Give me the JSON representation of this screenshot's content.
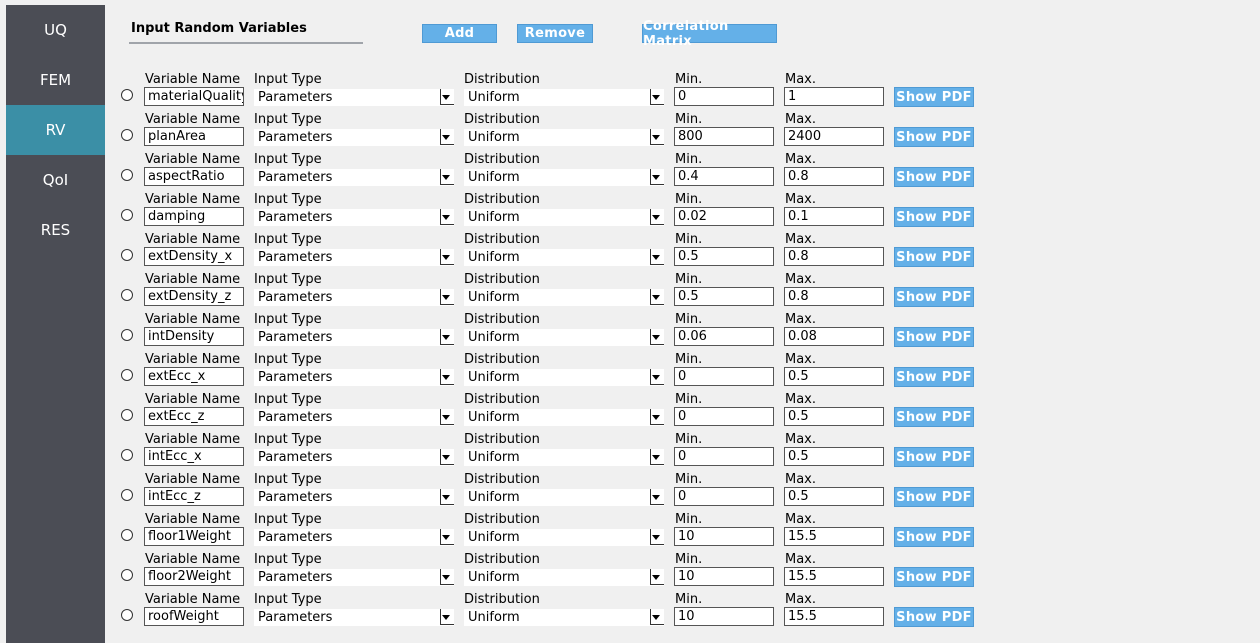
{
  "sidebar": {
    "items": [
      {
        "label": "UQ",
        "active": false
      },
      {
        "label": "FEM",
        "active": false
      },
      {
        "label": "RV",
        "active": true
      },
      {
        "label": "QoI",
        "active": false
      },
      {
        "label": "RES",
        "active": false
      }
    ]
  },
  "header": {
    "title": "Input Random Variables",
    "add_label": "Add",
    "remove_label": "Remove",
    "correlation_label": "Correlation Matrix"
  },
  "labels": {
    "variable_name": "Variable Name",
    "input_type": "Input Type",
    "distribution": "Distribution",
    "min": "Min.",
    "max": "Max.",
    "show_pdf": "Show PDF"
  },
  "colors": {
    "sidebar_bg": "#4b4d55",
    "sidebar_active": "#3b8fa6",
    "button_bg": "#64b0e8"
  },
  "variables": [
    {
      "name": "materialQuality",
      "input_type": "Parameters",
      "distribution": "Uniform",
      "min": "0",
      "max": "1"
    },
    {
      "name": "planArea",
      "input_type": "Parameters",
      "distribution": "Uniform",
      "min": "800",
      "max": "2400"
    },
    {
      "name": "aspectRatio",
      "input_type": "Parameters",
      "distribution": "Uniform",
      "min": "0.4",
      "max": "0.8"
    },
    {
      "name": "damping",
      "input_type": "Parameters",
      "distribution": "Uniform",
      "min": "0.02",
      "max": "0.1"
    },
    {
      "name": "extDensity_x",
      "input_type": "Parameters",
      "distribution": "Uniform",
      "min": "0.5",
      "max": "0.8"
    },
    {
      "name": "extDensity_z",
      "input_type": "Parameters",
      "distribution": "Uniform",
      "min": "0.5",
      "max": "0.8"
    },
    {
      "name": "intDensity",
      "input_type": "Parameters",
      "distribution": "Uniform",
      "min": "0.06",
      "max": "0.08"
    },
    {
      "name": "extEcc_x",
      "input_type": "Parameters",
      "distribution": "Uniform",
      "min": "0",
      "max": "0.5"
    },
    {
      "name": "extEcc_z",
      "input_type": "Parameters",
      "distribution": "Uniform",
      "min": "0",
      "max": "0.5"
    },
    {
      "name": "intEcc_x",
      "input_type": "Parameters",
      "distribution": "Uniform",
      "min": "0",
      "max": "0.5"
    },
    {
      "name": "intEcc_z",
      "input_type": "Parameters",
      "distribution": "Uniform",
      "min": "0",
      "max": "0.5"
    },
    {
      "name": "floor1Weight",
      "input_type": "Parameters",
      "distribution": "Uniform",
      "min": "10",
      "max": "15.5"
    },
    {
      "name": "floor2Weight",
      "input_type": "Parameters",
      "distribution": "Uniform",
      "min": "10",
      "max": "15.5"
    },
    {
      "name": "roofWeight",
      "input_type": "Parameters",
      "distribution": "Uniform",
      "min": "10",
      "max": "15.5"
    }
  ]
}
